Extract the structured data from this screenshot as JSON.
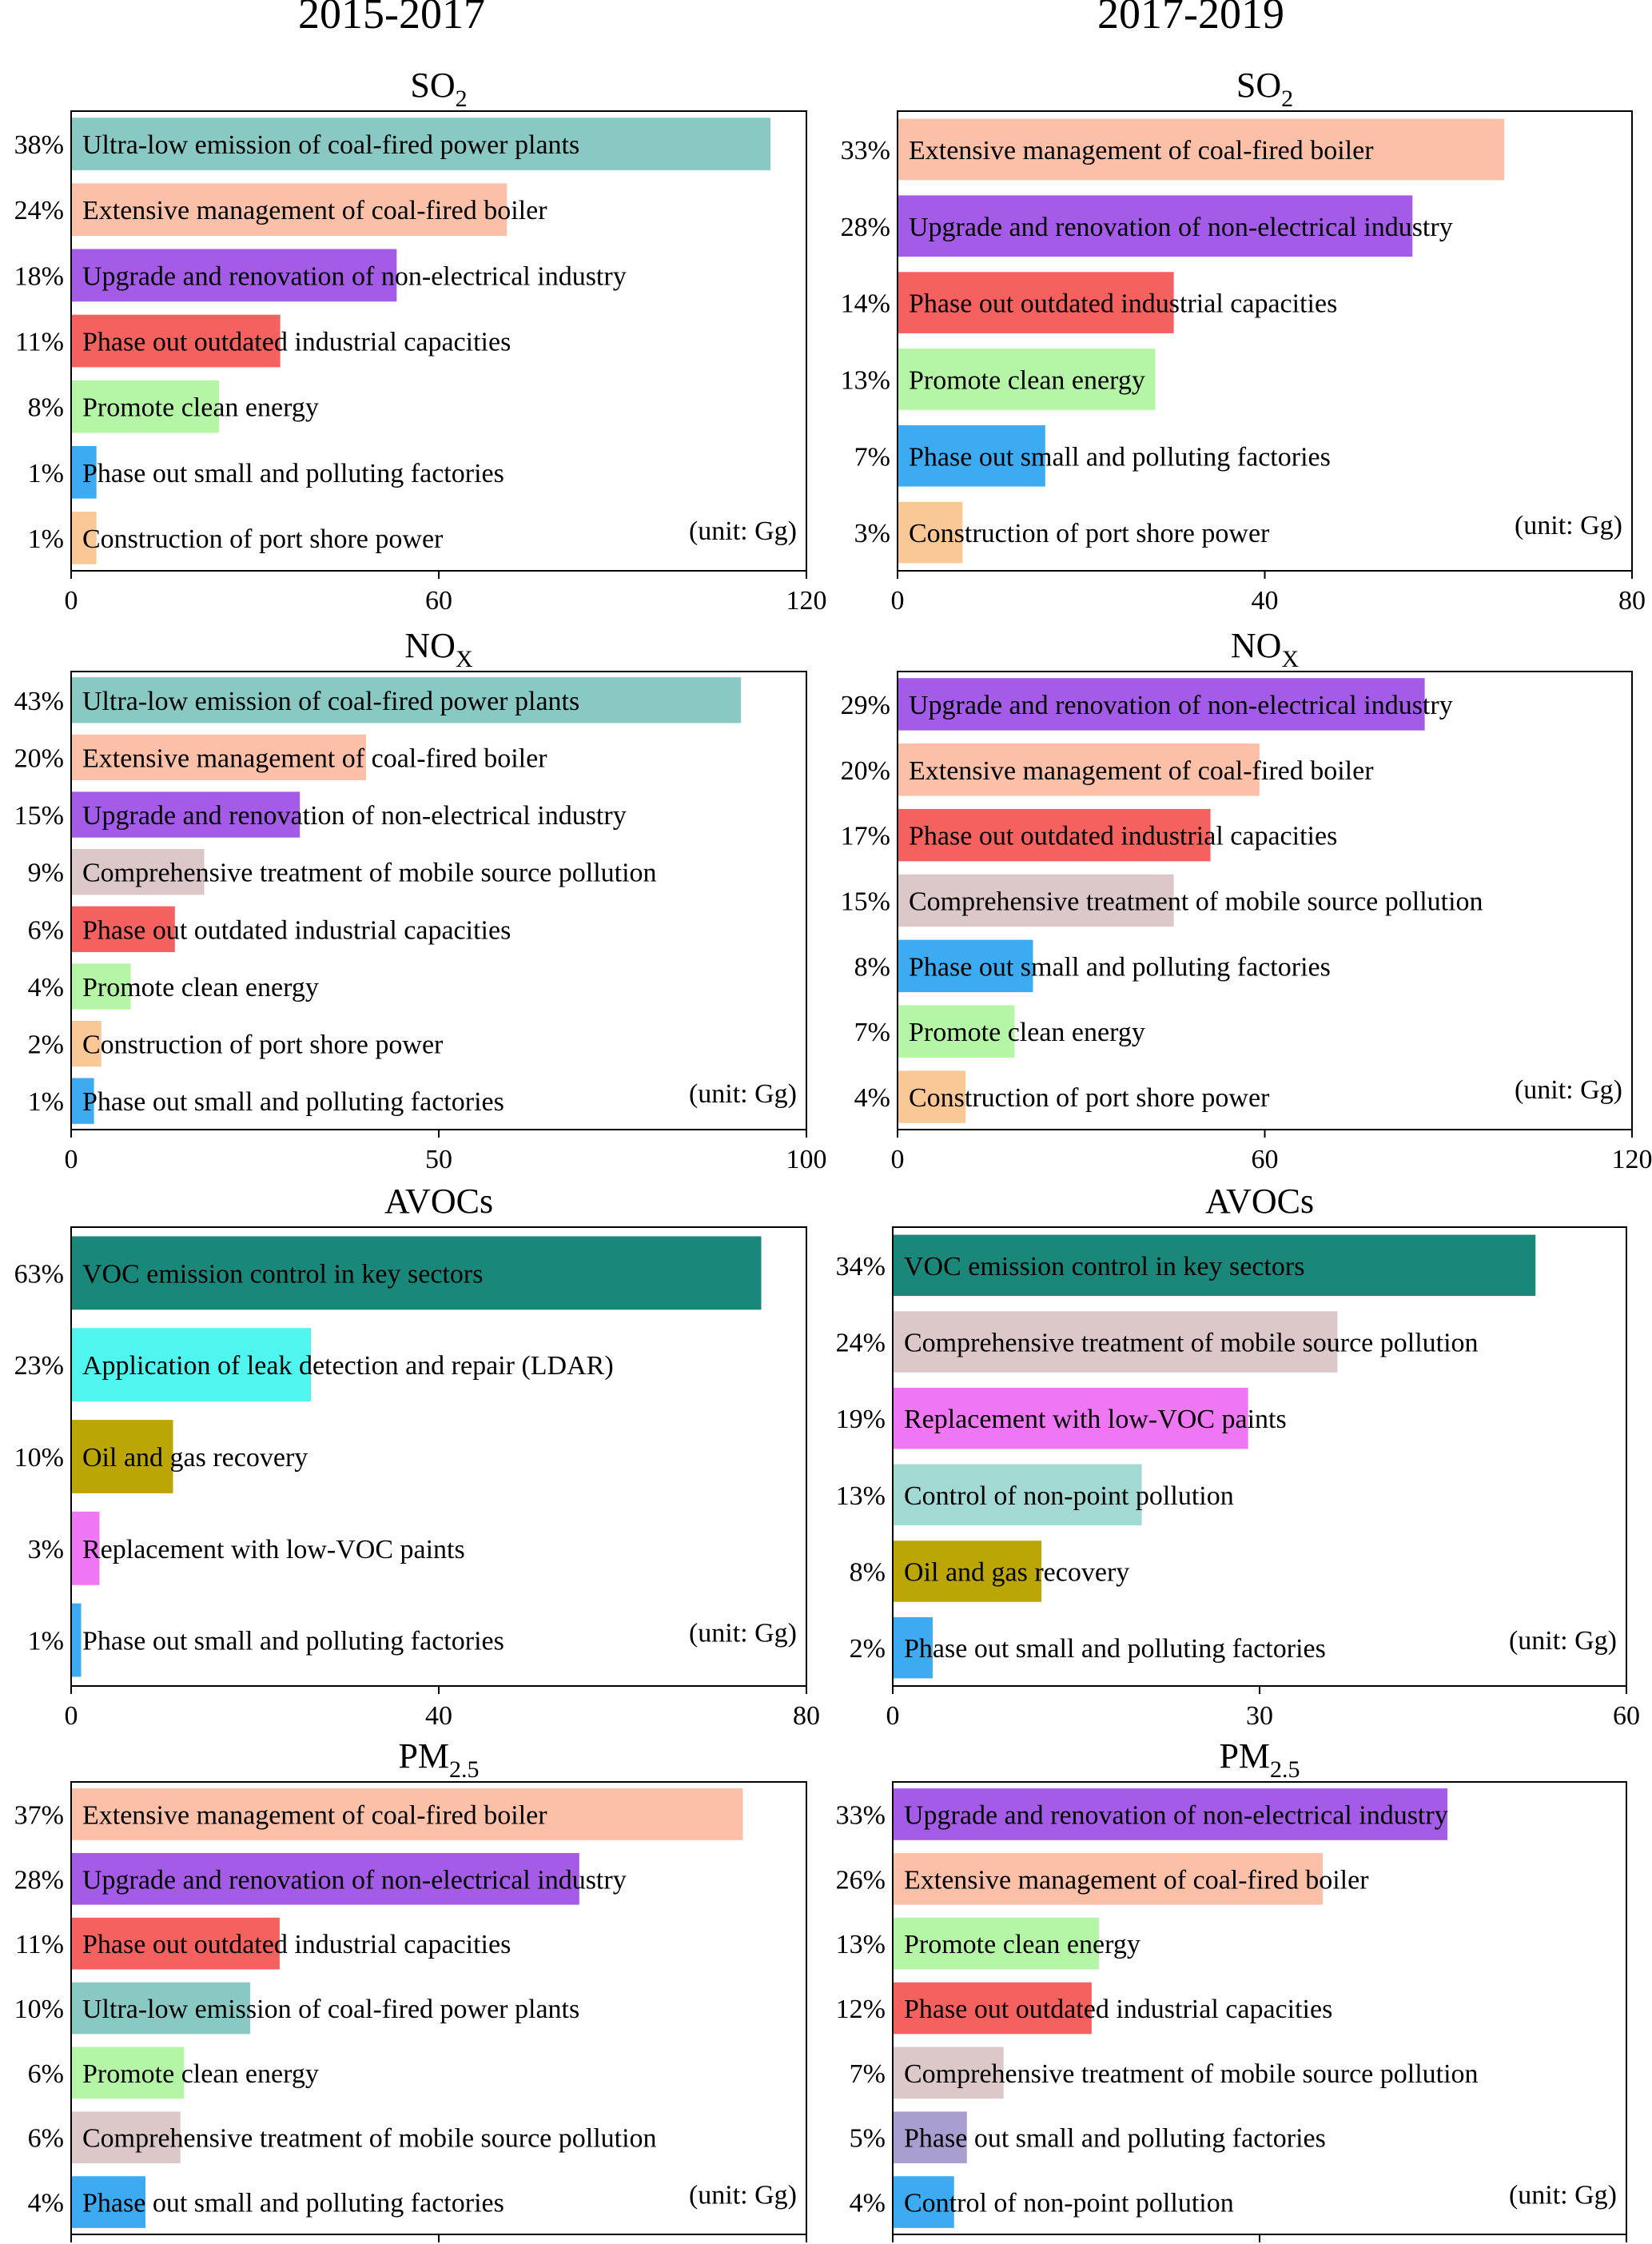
{
  "column_titles": [
    "2015-2017",
    "2017-2019"
  ],
  "colors": {
    "coal_power": "#8ac9c3",
    "coal_boiler": "#fcbfa7",
    "non_electrical": "#a45ce8",
    "outdated": "#f4615f",
    "clean_energy": "#b5f6a6",
    "small_factories": "#3cabf1",
    "port_shore": "#fac797",
    "mobile": "#dcc7c9",
    "voc_key": "#19877a",
    "ldar": "#4ff5ee",
    "oil_gas": "#bba605",
    "low_voc": "#ef77f3",
    "non_point": "#a2d9d3",
    "pm_small_factories": "#aa9dcf",
    "pm_non_point": "#3cabf1"
  },
  "chart_data": [
    {
      "type": "bar",
      "panel": "so2-2015",
      "title_main": "SO",
      "title_sub": "2",
      "unit": "(unit: Gg)",
      "xlim": [
        0,
        120
      ],
      "xticks": [
        "0",
        "60",
        "120"
      ],
      "bars": [
        {
          "label": "Ultra-low emission of coal-fired power plants",
          "pct": "38%",
          "value": 114,
          "color": "coal_power"
        },
        {
          "label": "Extensive management of coal-fired boiler",
          "pct": "24%",
          "value": 71,
          "color": "coal_boiler"
        },
        {
          "label": "Upgrade and renovation of non-electrical industry",
          "pct": "18%",
          "value": 53,
          "color": "non_electrical"
        },
        {
          "label": "Phase out outdated industrial capacities",
          "pct": "11%",
          "value": 34,
          "color": "outdated"
        },
        {
          "label": "Promote clean energy",
          "pct": "8%",
          "value": 24,
          "color": "clean_energy"
        },
        {
          "label": "Phase out small and polluting factories",
          "pct": "1%",
          "value": 4,
          "color": "small_factories"
        },
        {
          "label": "Construction of port shore power",
          "pct": "1%",
          "value": 4,
          "color": "port_shore"
        }
      ]
    },
    {
      "type": "bar",
      "panel": "so2-2017",
      "title_main": "SO",
      "title_sub": "2",
      "unit": "(unit: Gg)",
      "xlim": [
        0,
        80
      ],
      "xticks": [
        "0",
        "40",
        "80"
      ],
      "bars": [
        {
          "label": "Extensive management of coal-fired boiler",
          "pct": "33%",
          "value": 66,
          "color": "coal_boiler"
        },
        {
          "label": "Upgrade and renovation of non-electrical industry",
          "pct": "28%",
          "value": 56,
          "color": "non_electrical"
        },
        {
          "label": "Phase out outdated industrial capacities",
          "pct": "14%",
          "value": 30,
          "color": "outdated"
        },
        {
          "label": "Promote clean energy",
          "pct": "13%",
          "value": 28,
          "color": "clean_energy"
        },
        {
          "label": "Phase out small and polluting factories",
          "pct": "7%",
          "value": 16,
          "color": "small_factories"
        },
        {
          "label": "Construction of port shore power",
          "pct": "3%",
          "value": 7,
          "color": "port_shore"
        }
      ]
    },
    {
      "type": "bar",
      "panel": "nox-2015",
      "title_main": "NO",
      "title_sub": "X",
      "unit": "(unit: Gg)",
      "xlim": [
        0,
        100
      ],
      "xticks": [
        "0",
        "50",
        "100"
      ],
      "bars": [
        {
          "label": "Ultra-low emission of coal-fired power plants",
          "pct": "43%",
          "value": 91,
          "color": "coal_power"
        },
        {
          "label": "Extensive management of coal-fired boiler",
          "pct": "20%",
          "value": 40,
          "color": "coal_boiler"
        },
        {
          "label": "Upgrade and renovation of non-electrical industry",
          "pct": "15%",
          "value": 31,
          "color": "non_electrical"
        },
        {
          "label": "Comprehensive treatment of mobile source pollution",
          "pct": "9%",
          "value": 18,
          "color": "mobile"
        },
        {
          "label": "Phase out outdated industrial capacities",
          "pct": "6%",
          "value": 14,
          "color": "outdated"
        },
        {
          "label": "Promote clean energy",
          "pct": "4%",
          "value": 8,
          "color": "clean_energy"
        },
        {
          "label": "Construction of port shore power",
          "pct": "2%",
          "value": 4,
          "color": "port_shore"
        },
        {
          "label": "Phase out small and polluting factories",
          "pct": "1%",
          "value": 3,
          "color": "small_factories"
        }
      ]
    },
    {
      "type": "bar",
      "panel": "nox-2017",
      "title_main": "NO",
      "title_sub": "X",
      "unit": "(unit: Gg)",
      "xlim": [
        0,
        120
      ],
      "xticks": [
        "0",
        "60",
        "120"
      ],
      "bars": [
        {
          "label": "Upgrade and renovation of non-electrical industry",
          "pct": "29%",
          "value": 86,
          "color": "non_electrical"
        },
        {
          "label": "Extensive management of coal-fired boiler",
          "pct": "20%",
          "value": 59,
          "color": "coal_boiler"
        },
        {
          "label": "Phase out outdated industrial capacities",
          "pct": "17%",
          "value": 51,
          "color": "outdated"
        },
        {
          "label": "Comprehensive treatment of mobile source pollution",
          "pct": "15%",
          "value": 45,
          "color": "mobile"
        },
        {
          "label": "Phase out small and polluting factories",
          "pct": "8%",
          "value": 22,
          "color": "small_factories"
        },
        {
          "label": "Promote clean energy",
          "pct": "7%",
          "value": 19,
          "color": "clean_energy"
        },
        {
          "label": "Construction of port shore power",
          "pct": "4%",
          "value": 11,
          "color": "port_shore"
        }
      ]
    },
    {
      "type": "bar",
      "panel": "avocs-2015",
      "title_main": "AVOCs",
      "title_sub": "",
      "unit": "(unit: Gg)",
      "xlim": [
        0,
        80
      ],
      "xticks": [
        "0",
        "40",
        "80"
      ],
      "bars": [
        {
          "label": "VOC emission control in key sectors",
          "pct": "63%",
          "value": 75,
          "color": "voc_key"
        },
        {
          "label": "Application of leak detection and repair (LDAR)",
          "pct": "23%",
          "value": 26,
          "color": "ldar"
        },
        {
          "label": "Oil and gas recovery",
          "pct": "10%",
          "value": 11,
          "color": "oil_gas"
        },
        {
          "label": "Replacement with low-VOC paints",
          "pct": "3%",
          "value": 3,
          "color": "low_voc"
        },
        {
          "label": "Phase out small and polluting factories",
          "pct": "1%",
          "value": 1,
          "color": "small_factories"
        }
      ]
    },
    {
      "type": "bar",
      "panel": "avocs-2017",
      "title_main": "AVOCs",
      "title_sub": "",
      "unit": "(unit: Gg)",
      "xlim": [
        0,
        60
      ],
      "xticks": [
        "0",
        "30",
        "60"
      ],
      "bars": [
        {
          "label": "VOC emission control in key sectors",
          "pct": "34%",
          "value": 52.5,
          "color": "voc_key"
        },
        {
          "label": "Comprehensive treatment of mobile source pollution",
          "pct": "24%",
          "value": 36.3,
          "color": "mobile"
        },
        {
          "label": "Replacement with low-VOC paints",
          "pct": "19%",
          "value": 29,
          "color": "low_voc"
        },
        {
          "label": "Control of non-point pollution",
          "pct": "13%",
          "value": 20.3,
          "color": "non_point"
        },
        {
          "label": "Oil and gas recovery",
          "pct": "8%",
          "value": 12.1,
          "color": "oil_gas"
        },
        {
          "label": "Phase out small and polluting factories",
          "pct": "2%",
          "value": 3.2,
          "color": "small_factories"
        }
      ]
    },
    {
      "type": "bar",
      "panel": "pm25-2015",
      "title_main": "PM",
      "title_sub": "2.5",
      "unit": "(unit: Gg)",
      "xlim": [
        0,
        40
      ],
      "xticks": [
        "0",
        "20",
        "40"
      ],
      "bars": [
        {
          "label": "Extensive management of coal-fired boiler",
          "pct": "37%",
          "value": 36.5,
          "color": "coal_boiler"
        },
        {
          "label": "Upgrade and renovation of non-electrical industry",
          "pct": "28%",
          "value": 27.6,
          "color": "non_electrical"
        },
        {
          "label": "Phase out outdated industrial capacities",
          "pct": "11%",
          "value": 11.3,
          "color": "outdated"
        },
        {
          "label": "Ultra-low emission of coal-fired power plants",
          "pct": "10%",
          "value": 9.7,
          "color": "coal_power"
        },
        {
          "label": "Promote clean energy",
          "pct": "6%",
          "value": 6.1,
          "color": "clean_energy"
        },
        {
          "label": "Comprehensive treatment of mobile source pollution",
          "pct": "6%",
          "value": 5.9,
          "color": "mobile"
        },
        {
          "label": "Phase out small and polluting factories",
          "pct": "4%",
          "value": 4,
          "color": "small_factories"
        }
      ]
    },
    {
      "type": "bar",
      "panel": "pm25-2017",
      "title_main": "PM",
      "title_sub": "2.5",
      "unit": "(unit: Gg)",
      "xlim": [
        0,
        40
      ],
      "xticks": [
        "0",
        "20",
        "40"
      ],
      "bars": [
        {
          "label": "Upgrade and renovation of non-electrical industry",
          "pct": "33%",
          "value": 30.2,
          "color": "non_electrical"
        },
        {
          "label": "Extensive management of coal-fired boiler",
          "pct": "26%",
          "value": 23.4,
          "color": "coal_boiler"
        },
        {
          "label": "Promote clean energy",
          "pct": "13%",
          "value": 11.2,
          "color": "clean_energy"
        },
        {
          "label": "Phase out outdated industrial capacities",
          "pct": "12%",
          "value": 10.8,
          "color": "outdated"
        },
        {
          "label": "Comprehensive treatment of mobile source pollution",
          "pct": "7%",
          "value": 6,
          "color": "mobile"
        },
        {
          "label": "Phase out small and polluting factories",
          "pct": "5%",
          "value": 4,
          "color": "pm_small_factories"
        },
        {
          "label": "Control of non-point pollution",
          "pct": "4%",
          "value": 3.3,
          "color": "pm_non_point"
        }
      ]
    }
  ]
}
